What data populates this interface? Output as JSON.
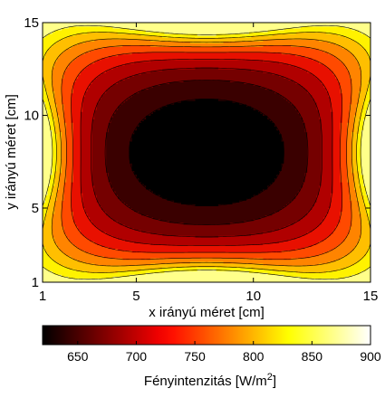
{
  "chart_data": {
    "type": "heatmap",
    "subtype": "filled-contour",
    "xlabel": "x irányú méret [cm]",
    "ylabel": "y irányú méret [cm]",
    "xlim": [
      1,
      15
    ],
    "ylim": [
      1,
      15
    ],
    "xticks": [
      "1",
      "5",
      "10",
      "15"
    ],
    "yticks": [
      "1",
      "5",
      "10",
      "15"
    ],
    "x_tick_values": [
      1,
      5,
      10,
      15
    ],
    "y_tick_values": [
      1,
      5,
      10,
      15
    ],
    "colormap": "hot",
    "colorbar": {
      "label": "Fényintenzitás [W/m",
      "label_sup": "2",
      "label_end": "]",
      "range": [
        620,
        900
      ],
      "ticks": [
        "650",
        "700",
        "750",
        "800",
        "850",
        "900"
      ],
      "tick_values": [
        650,
        700,
        750,
        800,
        850,
        900
      ]
    },
    "levels": [
      650,
      680,
      710,
      740,
      770,
      800,
      830,
      860,
      890
    ],
    "level_colors": [
      "#000000",
      "#3a0000",
      "#750000",
      "#b00000",
      "#e81000",
      "#ff4a00",
      "#ff8400",
      "#ffbf00",
      "#fff200",
      "#ffff8a"
    ],
    "intensity_range": [
      620,
      900
    ],
    "min_region": "center (≈ x 3–12, y 5–10)",
    "max_regions": [
      "top-center edge",
      "bottom-center edge",
      "left-center edge",
      "right-center edge"
    ],
    "corners": "red, ≈ 750–770",
    "grid": false,
    "legend": "colorbar bottom"
  }
}
